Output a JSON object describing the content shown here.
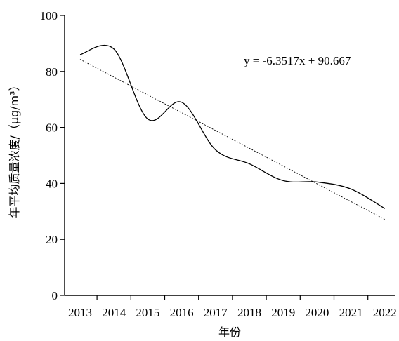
{
  "chart_data": {
    "type": "line",
    "x": [
      "2013",
      "2014",
      "2015",
      "2016",
      "2017",
      "2018",
      "2019",
      "2020",
      "2021",
      "2022"
    ],
    "series": [
      {
        "values": [
          86,
          88,
          63,
          69,
          52,
          47,
          41,
          40.5,
          38,
          31
        ]
      }
    ],
    "trendline": {
      "slope": -6.3517,
      "intercept": 90.667
    },
    "annotation": "y = -6.3517x + 90.667",
    "xlabel": "年份",
    "ylabel": "年平均质量浓度/（μg/m³）",
    "ylim": [
      0,
      100
    ],
    "yticks": [
      0,
      20,
      40,
      60,
      80,
      100
    ],
    "grid": false
  }
}
